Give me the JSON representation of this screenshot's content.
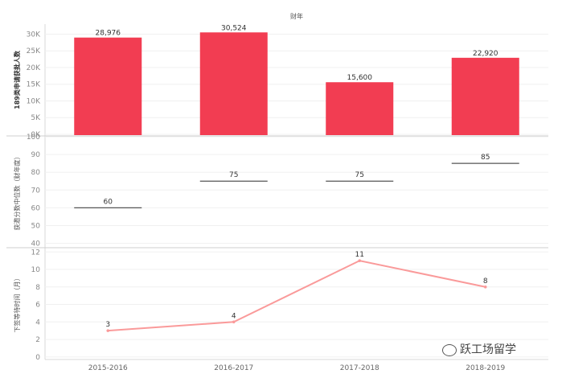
{
  "chart_data": [
    {
      "type": "bar",
      "title": "财年",
      "ylabel": "189类申请获批人数",
      "ylim": [
        0,
        33000
      ],
      "yticks": [
        "0K",
        "5K",
        "10K",
        "15K",
        "20K",
        "25K",
        "30K"
      ],
      "categories": [
        "2015-2016",
        "2016-2017",
        "2017-2018",
        "2018-2019"
      ],
      "values": [
        28976,
        30524,
        15600,
        22920
      ],
      "value_labels": [
        "28,976",
        "30,524",
        "15,600",
        "22,920"
      ],
      "color": "#f23d52"
    },
    {
      "type": "scatter",
      "marker": "horizontal-line",
      "ylabel": "获邀分数中位数（财年度）",
      "ylim": [
        38,
        100
      ],
      "yticks": [
        "40",
        "50",
        "60",
        "70",
        "80",
        "90",
        "100"
      ],
      "categories": [
        "2015-2016",
        "2016-2017",
        "2017-2018",
        "2018-2019"
      ],
      "values": [
        60,
        75,
        75,
        85
      ],
      "value_labels": [
        "60",
        "75",
        "75",
        "85"
      ],
      "color": "#555555"
    },
    {
      "type": "line",
      "ylabel": "下签等待时间（月）",
      "ylim": [
        -0.2,
        12.3
      ],
      "yticks": [
        "0",
        "2",
        "4",
        "6",
        "8",
        "10",
        "12"
      ],
      "categories": [
        "2015-2016",
        "2016-2017",
        "2017-2018",
        "2018-2019"
      ],
      "values": [
        3,
        4,
        11,
        8
      ],
      "value_labels": [
        "3",
        "4",
        "11",
        "8"
      ],
      "color": "#fa9a9a"
    }
  ],
  "watermark": {
    "text": "跃工场留学",
    "icon": "wechat-bubble-icon"
  }
}
